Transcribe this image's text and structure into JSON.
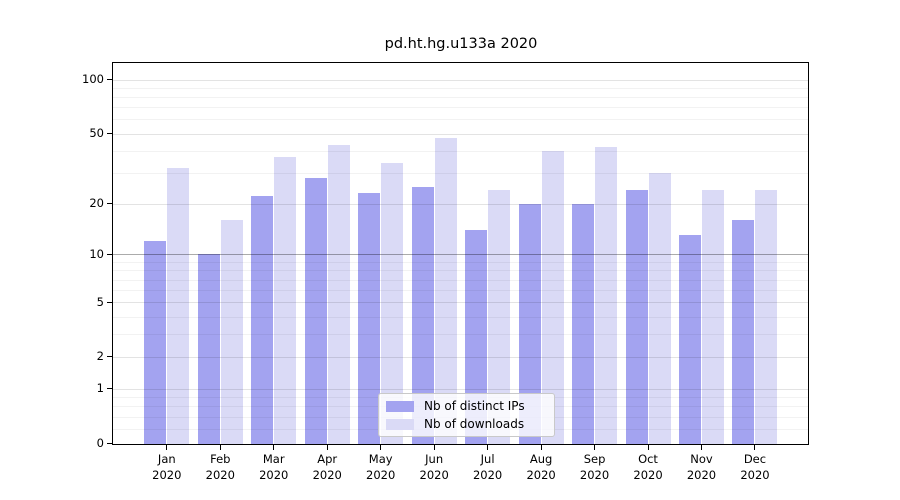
{
  "chart_data": {
    "type": "bar",
    "title": "pd.ht.hg.u133a 2020",
    "categories": [
      "Jan 2020",
      "Feb 2020",
      "Mar 2020",
      "Apr 2020",
      "May 2020",
      "Jun 2020",
      "Jul 2020",
      "Aug 2020",
      "Sep 2020",
      "Oct 2020",
      "Nov 2020",
      "Dec 2020"
    ],
    "series": [
      {
        "name": "Nb of distinct IPs",
        "color": "#a3a3f0",
        "values": [
          12,
          10,
          22,
          28,
          23,
          25,
          14,
          20,
          20,
          24,
          13,
          16
        ]
      },
      {
        "name": "Nb of downloads",
        "color": "#dadaf6",
        "values": [
          32,
          16,
          37,
          43,
          34,
          47,
          24,
          40,
          42,
          30,
          24,
          24
        ]
      }
    ],
    "xlabel": "",
    "ylabel": "",
    "y_axis": {
      "scale": "log1p",
      "ticks": [
        0,
        1,
        2,
        5,
        10,
        20,
        50,
        100
      ],
      "minor_gridlines": [
        0.2,
        0.4,
        0.6,
        0.8,
        3,
        4,
        6,
        7,
        8,
        9,
        30,
        40,
        60,
        70,
        80,
        90
      ],
      "reference_line": 10,
      "ylim": [
        0,
        130
      ]
    },
    "grid": true,
    "legend_position": "lower center"
  }
}
